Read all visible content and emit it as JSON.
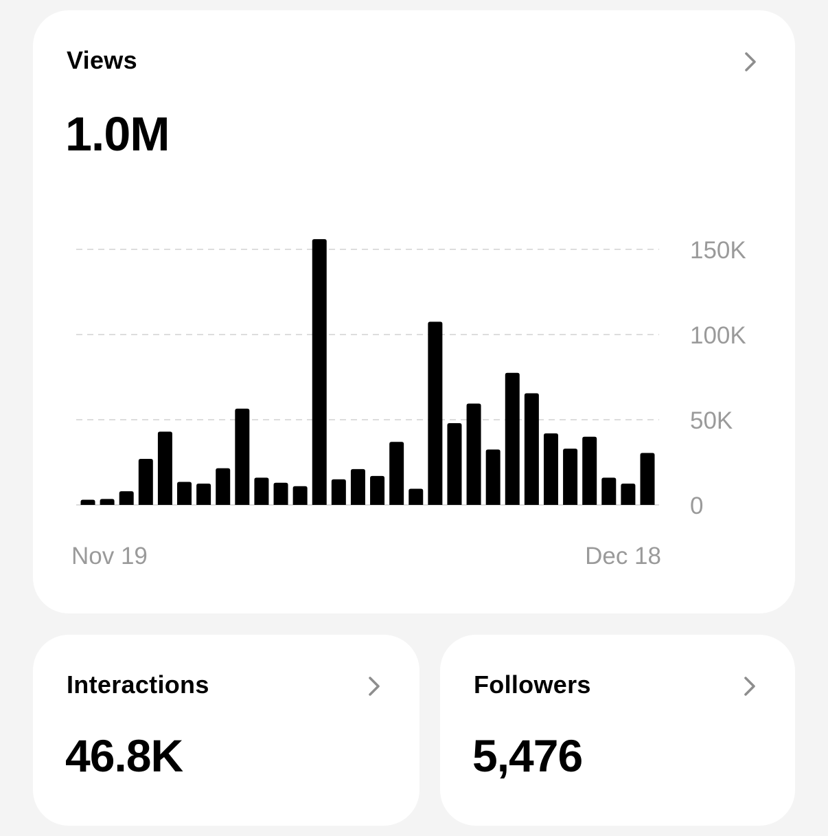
{
  "views": {
    "title": "Views",
    "value": "1.0M"
  },
  "interactions": {
    "title": "Interactions",
    "value": "46.8K"
  },
  "followers": {
    "title": "Followers",
    "value": "5,476"
  },
  "icons": {
    "chevron": "chevron-right-icon"
  },
  "colors": {
    "bar": "#000000",
    "axis_text": "#9a9a9a",
    "grid": "#dddddd",
    "card": "#ffffff",
    "background": "#f4f4f4"
  },
  "chart_data": {
    "type": "bar",
    "x_tick_labels": [
      "Nov 19",
      "Dec 18"
    ],
    "y_tick_labels": [
      "0",
      "50K",
      "100K",
      "150K"
    ],
    "y_ticks": [
      0,
      50000,
      100000,
      150000
    ],
    "ylim": [
      0,
      150000
    ],
    "grid": true,
    "values": [
      3000,
      3500,
      8000,
      27000,
      43000,
      13500,
      12500,
      21500,
      56500,
      16000,
      13000,
      11000,
      156000,
      15000,
      21000,
      17000,
      37000,
      9500,
      107500,
      48000,
      59500,
      32500,
      77500,
      65500,
      42000,
      33000,
      40000,
      16000,
      12500,
      30500
    ]
  }
}
